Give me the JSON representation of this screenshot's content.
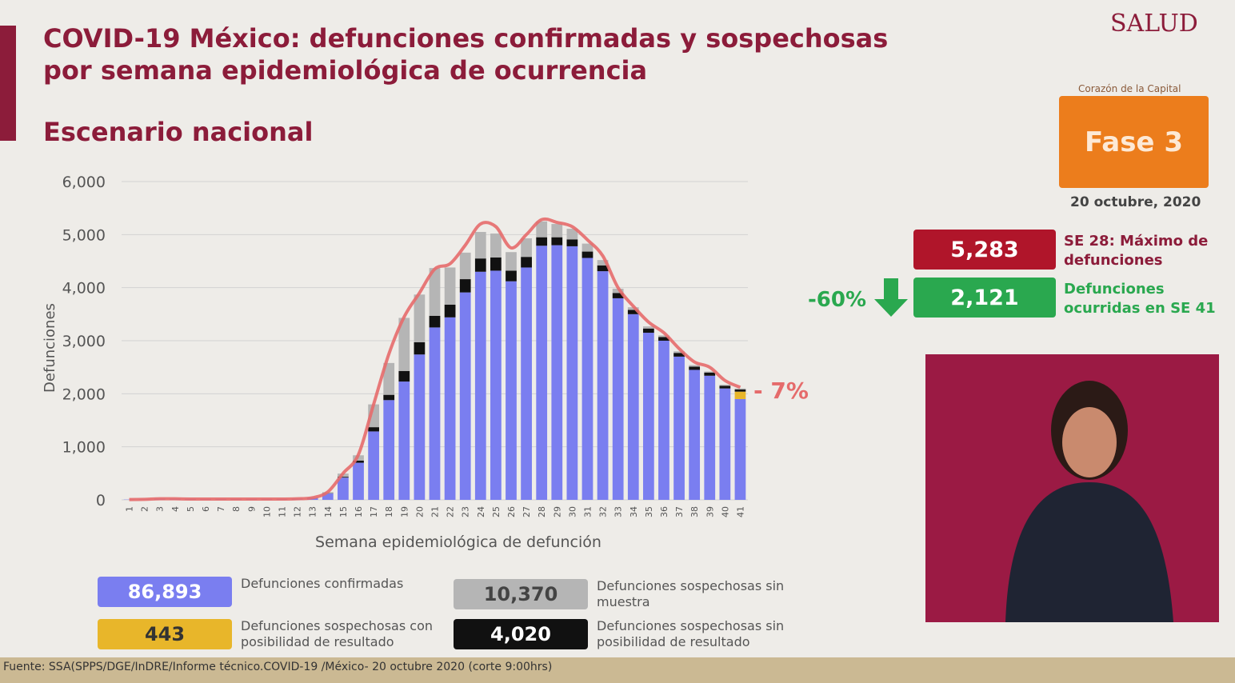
{
  "header": {
    "title_line1": "COVID-19 México: defunciones confirmadas y sospechosas",
    "title_line2": "por semana epidemiológica de ocurrencia",
    "subtitle": "Escenario nacional",
    "logo": "SALUD",
    "logo_caption": "Corazón de la Capital"
  },
  "chart_data": {
    "type": "bar",
    "stacked": true,
    "ylabel": "Defunciones",
    "xlabel": "Semana epidemiológica de defunción",
    "categories": [
      "1",
      "2",
      "3",
      "4",
      "5",
      "6",
      "7",
      "8",
      "9",
      "10",
      "11",
      "12",
      "13",
      "14",
      "15",
      "16",
      "17",
      "18",
      "19",
      "20",
      "21",
      "22",
      "23",
      "24",
      "25",
      "26",
      "27",
      "28",
      "29",
      "30",
      "31",
      "32",
      "33",
      "34",
      "35",
      "36",
      "37",
      "38",
      "39",
      "40",
      "41"
    ],
    "ylim": [
      0,
      6000
    ],
    "yticks": [
      0,
      {
        "value": 1000,
        "label": "1,000"
      },
      {
        "value": 2000,
        "label": "2,000"
      },
      {
        "value": 3000,
        "label": "3,000"
      },
      {
        "value": 4000,
        "label": "4,000"
      },
      {
        "value": 5000,
        "label": "5,000"
      },
      {
        "value": 6000,
        "label": "6,000"
      }
    ],
    "grid": true,
    "series": [
      {
        "name": "Defunciones confirmadas",
        "color": "#7a7ef0",
        "total": 86893,
        "total_label": "86,893",
        "values": [
          5,
          10,
          20,
          20,
          15,
          15,
          15,
          15,
          15,
          15,
          15,
          20,
          40,
          120,
          420,
          700,
          1290,
          1880,
          2230,
          2740,
          3250,
          3440,
          3910,
          4300,
          4320,
          4120,
          4380,
          4790,
          4800,
          4780,
          4560,
          4310,
          3800,
          3500,
          3150,
          3000,
          2700,
          2450,
          2340,
          2100,
          1900
        ]
      },
      {
        "name": "Defunciones sospechosas con posibilidad de resultado",
        "color": "#e8b62a",
        "total": 443,
        "total_label": "443",
        "values": [
          0,
          0,
          0,
          0,
          0,
          0,
          0,
          0,
          0,
          0,
          0,
          0,
          0,
          0,
          0,
          0,
          0,
          0,
          0,
          0,
          0,
          0,
          0,
          0,
          0,
          0,
          0,
          0,
          0,
          0,
          0,
          0,
          0,
          0,
          0,
          0,
          0,
          0,
          0,
          0,
          140
        ]
      },
      {
        "name": "Defunciones sospechosas sin posibilidad de resultado",
        "color": "#111111",
        "total": 4020,
        "total_label": "4,020",
        "values": [
          0,
          0,
          0,
          0,
          0,
          0,
          0,
          0,
          0,
          0,
          0,
          0,
          0,
          5,
          15,
          40,
          80,
          100,
          200,
          230,
          220,
          240,
          250,
          250,
          250,
          200,
          200,
          160,
          150,
          130,
          120,
          110,
          100,
          80,
          80,
          70,
          70,
          60,
          60,
          50,
          40
        ]
      },
      {
        "name": "Defunciones sospechosas sin muestra",
        "color": "#b5b5b5",
        "total": 10370,
        "total_label": "10,370",
        "values": [
          0,
          0,
          0,
          0,
          0,
          0,
          0,
          0,
          0,
          0,
          0,
          0,
          0,
          20,
          60,
          100,
          430,
          600,
          1000,
          900,
          900,
          700,
          500,
          500,
          450,
          350,
          350,
          300,
          250,
          200,
          150,
          100,
          80,
          50,
          40,
          30,
          30,
          30,
          20,
          20,
          20
        ]
      }
    ],
    "line": {
      "color": "#e56b6b",
      "values": [
        5,
        10,
        20,
        20,
        15,
        15,
        15,
        15,
        15,
        15,
        15,
        20,
        40,
        150,
        500,
        850,
        1800,
        2750,
        3450,
        3900,
        4350,
        4450,
        4800,
        5200,
        5150,
        4750,
        5000,
        5283,
        5230,
        5150,
        4900,
        4600,
        4000,
        3650,
        3350,
        3150,
        2850,
        2600,
        2500,
        2250,
        2121
      ]
    },
    "annotation": "- 7%"
  },
  "side": {
    "phase": "Fase 3",
    "date": "20 octubre, 2020",
    "max_value": 5283,
    "max_label": "5,283",
    "max_text": "SE 28: Máximo de defunciones",
    "change": "-60%",
    "last_value": 2121,
    "last_label": "2,121",
    "last_text": "Defunciones ocurridas en SE 41"
  },
  "footer": "Fuente: SSA(SPPS/DGE/InDRE/Informe técnico.COVID-19 /México- 20 octubre 2020 (corte 9:00hrs)"
}
